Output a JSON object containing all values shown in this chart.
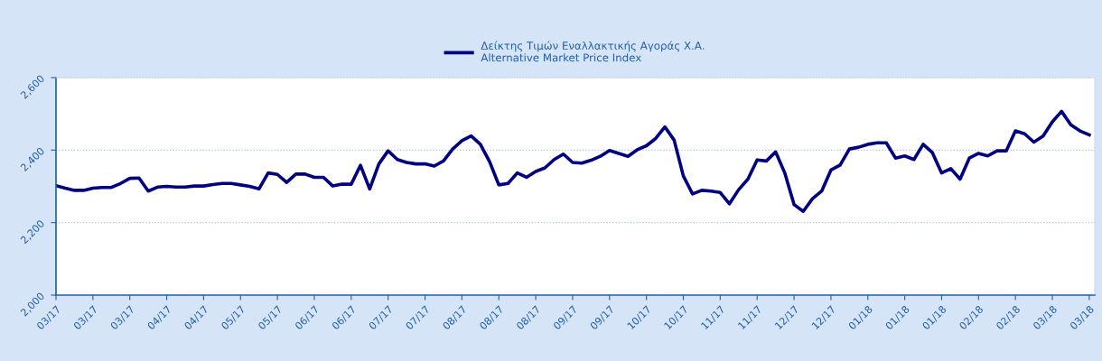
{
  "chart_data": {
    "type": "line",
    "categories": [
      "03/17",
      null,
      null,
      null,
      "03/17",
      null,
      null,
      null,
      "03/17",
      null,
      null,
      null,
      "04/17",
      null,
      null,
      null,
      "04/17",
      null,
      null,
      null,
      "05/17",
      null,
      null,
      null,
      "05/17",
      null,
      null,
      null,
      "06/17",
      null,
      null,
      null,
      "06/17",
      null,
      null,
      null,
      "07/17",
      null,
      null,
      null,
      "07/17",
      null,
      null,
      null,
      "08/17",
      null,
      null,
      null,
      "08/17",
      null,
      null,
      null,
      "08/17",
      null,
      null,
      null,
      "09/17",
      null,
      null,
      null,
      "09/17",
      null,
      null,
      null,
      "10/17",
      null,
      null,
      null,
      "10/17",
      null,
      null,
      null,
      "11/17",
      null,
      null,
      null,
      "11/17",
      null,
      null,
      null,
      "12/17",
      null,
      null,
      null,
      "12/17",
      null,
      null,
      null,
      "01/18",
      null,
      null,
      null,
      "01/18",
      null,
      null,
      null,
      "01/18",
      null,
      null,
      null,
      "02/18",
      null,
      null,
      null,
      "02/18",
      null,
      null,
      null,
      "03/18",
      null,
      null,
      null,
      "03/18"
    ],
    "series": [
      {
        "name": "Δείκτης Τιμών Εναλλακτικής Αγοράς Χ.Α.\nAlternative Market Price Index",
        "color": "#000080",
        "values": [
          2302,
          2295,
          2289,
          2289,
          2295,
          2297,
          2297,
          2308,
          2322,
          2323,
          2287,
          2298,
          2300,
          2298,
          2298,
          2301,
          2301,
          2305,
          2308,
          2308,
          2304,
          2300,
          2293,
          2337,
          2333,
          2311,
          2334,
          2334,
          2325,
          2325,
          2301,
          2306,
          2306,
          2358,
          2293,
          2362,
          2398,
          2374,
          2366,
          2362,
          2362,
          2356,
          2370,
          2403,
          2426,
          2439,
          2416,
          2368,
          2304,
          2308,
          2337,
          2325,
          2341,
          2351,
          2374,
          2389,
          2366,
          2364,
          2372,
          2383,
          2399,
          2391,
          2383,
          2401,
          2412,
          2432,
          2464,
          2428,
          2329,
          2279,
          2289,
          2287,
          2283,
          2252,
          2291,
          2320,
          2373,
          2370,
          2395,
          2337,
          2250,
          2231,
          2266,
          2287,
          2345,
          2359,
          2403,
          2408,
          2416,
          2420,
          2420,
          2378,
          2384,
          2374,
          2416,
          2393,
          2337,
          2349,
          2320,
          2378,
          2391,
          2384,
          2398,
          2398,
          2453,
          2445,
          2422,
          2439,
          2478,
          2507,
          2470,
          2453,
          2442
        ]
      }
    ],
    "ylim": [
      2000,
      2600
    ],
    "yticks": [
      {
        "value": 2000,
        "label": "2,000"
      },
      {
        "value": 2200,
        "label": "2,200"
      },
      {
        "value": 2400,
        "label": "2,400"
      },
      {
        "value": 2600,
        "label": "2,600"
      }
    ],
    "grid": "y",
    "legend": "top",
    "marker": "none",
    "line_style": "solid"
  }
}
